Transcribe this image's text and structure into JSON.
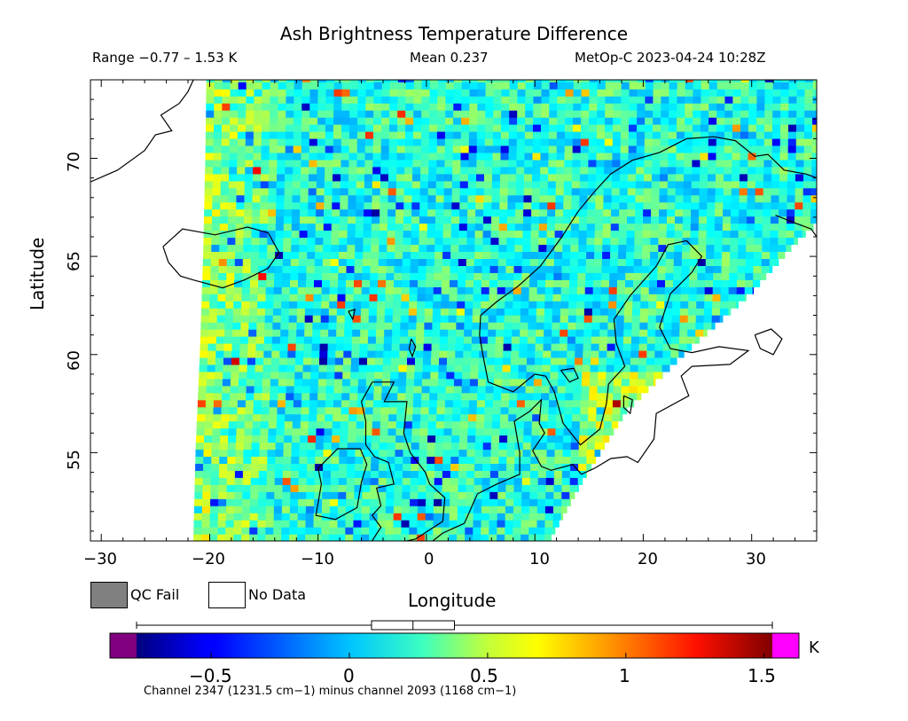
{
  "title": "Ash Brightness Temperature Difference",
  "header": {
    "range": "Range −0.77 – 1.53 K",
    "mean": "Mean 0.237",
    "satellite": "MetOp-C 2023-04-24 10:28Z"
  },
  "axes": {
    "xlabel": "Longitude",
    "ylabel": "Latitude",
    "xticks": [
      "−30",
      "−20",
      "−10",
      "0",
      "10",
      "20",
      "30"
    ],
    "yticks": [
      "55",
      "60",
      "65",
      "70"
    ],
    "xlim": [
      -31,
      36
    ],
    "ylim": [
      50.5,
      74
    ]
  },
  "legend": {
    "qc_fail": "QC Fail",
    "no_data": "No Data",
    "qc_color": "#808080",
    "nodata_color": "#ffffff"
  },
  "colorbar": {
    "ticks": [
      "−0.5",
      "0",
      "0.5",
      "1",
      "1.5"
    ],
    "unit": "K",
    "range": [
      -0.77,
      1.53
    ],
    "below_color": "#800080",
    "above_color": "#ff00ff",
    "boxplot": {
      "min": -0.77,
      "q1": 0.08,
      "median": 0.23,
      "q3": 0.38,
      "max": 1.53
    }
  },
  "caption": "Channel 2347 (1231.5 cm−1) minus channel 2093 (1168 cm−1)",
  "chart_data": {
    "type": "heatmap",
    "title": "Ash Brightness Temperature Difference",
    "xlabel": "Longitude",
    "ylabel": "Latitude",
    "xlim": [
      -31,
      36
    ],
    "ylim": [
      50.5,
      74
    ],
    "colorbar_range": [
      -0.77,
      1.53
    ],
    "mean": 0.237,
    "units": "K",
    "colormap": "jet",
    "swath": {
      "west_edge": [
        [
          -21.5,
          50.5
        ],
        [
          -21.3,
          55
        ],
        [
          -20.9,
          60
        ],
        [
          -20.6,
          65
        ],
        [
          -20.4,
          70
        ],
        [
          -20.3,
          74
        ]
      ],
      "east_edge": [
        [
          11.5,
          50.5
        ],
        [
          14.5,
          53.5
        ],
        [
          18.5,
          57
        ],
        [
          24,
          60
        ],
        [
          30,
          63
        ],
        [
          34,
          65.5
        ],
        [
          36,
          66.5
        ]
      ]
    }
  }
}
